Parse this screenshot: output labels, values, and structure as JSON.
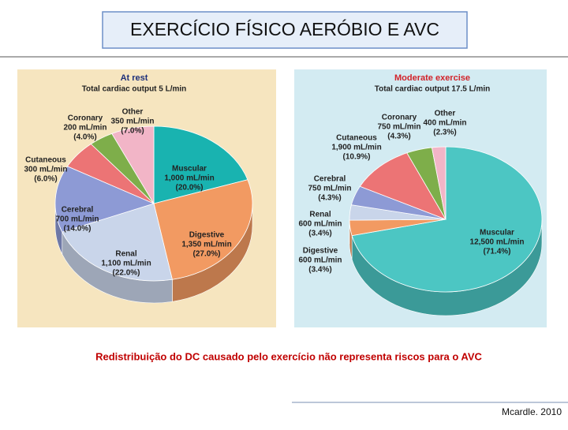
{
  "header": {
    "title": "EXERCÍCIO FÍSICO AERÓBIO E AVC"
  },
  "caption": "Redistribuição do DC causado pelo exercício não representa riscos para o AVC",
  "citation": "Mcardle. 2010",
  "chart_data": [
    {
      "type": "pie",
      "title": "At rest",
      "subtitle": "Total cardiac output 5 L/min",
      "categories": [
        "Muscular",
        "Digestive",
        "Renal",
        "Cerebral",
        "Cutaneous",
        "Coronary",
        "Other"
      ],
      "values": [
        20.0,
        27.0,
        22.0,
        14.0,
        6.0,
        4.0,
        7.0
      ],
      "value_labels": [
        "(20.0%)",
        "(27.0%)",
        "(22.0%)",
        "(14.0%)",
        "(6.0%)",
        "(4.0%)",
        "(7.0%)"
      ],
      "flows": [
        1000,
        1350,
        1100,
        700,
        300,
        200,
        350
      ],
      "flow_labels": [
        "1,000 mL/min",
        "1,350 mL/min",
        "1,100 mL/min",
        "700 mL/min",
        "300 mL/min",
        "200 mL/min",
        "350 mL/min"
      ],
      "colors": [
        "#19b3b0",
        "#f29a62",
        "#c9d5ea",
        "#8d9ad5",
        "#ec7475",
        "#7eae4a",
        "#f2b5c7"
      ]
    },
    {
      "type": "pie",
      "title": "Moderate exercise",
      "subtitle": "Total cardiac output 17.5 L/min",
      "categories": [
        "Muscular",
        "Digestive",
        "Renal",
        "Cerebral",
        "Cutaneous",
        "Coronary",
        "Other"
      ],
      "values": [
        71.4,
        3.4,
        3.4,
        4.3,
        10.9,
        4.3,
        2.3
      ],
      "value_labels": [
        "(71.4%)",
        "(3.4%)",
        "(3.4%)",
        "(4.3%)",
        "(10.9%)",
        "(4.3%)",
        "(2.3%)"
      ],
      "flows": [
        12500,
        600,
        600,
        750,
        1900,
        750,
        400
      ],
      "flow_labels": [
        "12,500 mL/min",
        "600 mL/min",
        "600 mL/min",
        "750 mL/min",
        "1,900 mL/min",
        "750 mL/min",
        "400 mL/min"
      ],
      "colors": [
        "#4cc6c3",
        "#f29a62",
        "#c9d5ea",
        "#8d9ad5",
        "#ec7475",
        "#7eae4a",
        "#f2b5c7"
      ]
    }
  ]
}
